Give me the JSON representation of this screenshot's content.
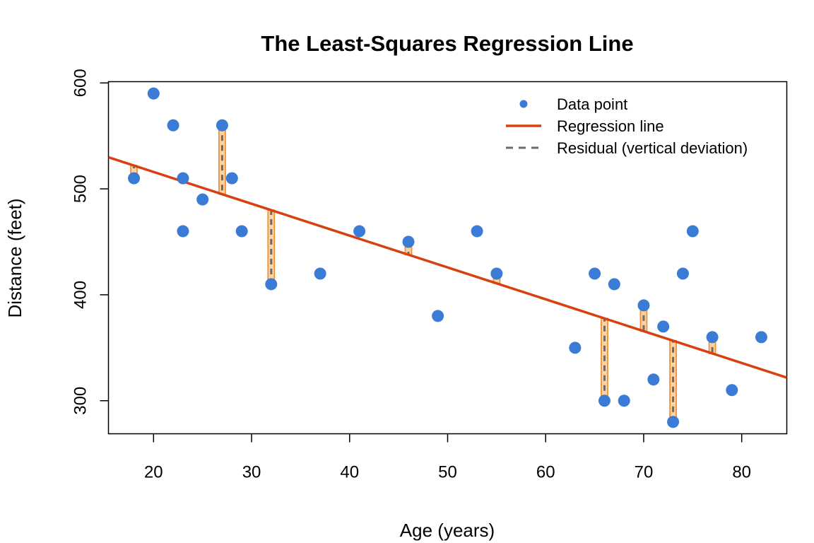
{
  "chart_data": {
    "type": "scatter",
    "title": "The Least-Squares Regression Line",
    "xlabel": "Age (years)",
    "ylabel": "Distance (feet)",
    "xlim": [
      15.4,
      84.6
    ],
    "ylim": [
      268.8,
      601.2
    ],
    "xticks": [
      20,
      30,
      40,
      50,
      60,
      70,
      80
    ],
    "yticks": [
      300,
      400,
      500,
      600
    ],
    "grid": false,
    "legend_position": "top-right",
    "legend": [
      "Data point",
      "Regression line",
      "Residual (vertical deviation)"
    ],
    "colors": {
      "points": "#3a7bd5",
      "regression": "#d9400f",
      "residual_band": "#ffd29e",
      "residual_band_edge": "#f0923a",
      "residual_dash": "#6b6b6b"
    },
    "regression": {
      "intercept": 576.1,
      "slope": -3.006
    },
    "points": [
      {
        "x": 18,
        "y": 510
      },
      {
        "x": 20,
        "y": 590
      },
      {
        "x": 22,
        "y": 560
      },
      {
        "x": 23,
        "y": 510
      },
      {
        "x": 23,
        "y": 460
      },
      {
        "x": 25,
        "y": 490
      },
      {
        "x": 27,
        "y": 560
      },
      {
        "x": 28,
        "y": 510
      },
      {
        "x": 29,
        "y": 460
      },
      {
        "x": 32,
        "y": 410
      },
      {
        "x": 37,
        "y": 420
      },
      {
        "x": 41,
        "y": 460
      },
      {
        "x": 46,
        "y": 450
      },
      {
        "x": 49,
        "y": 380
      },
      {
        "x": 53,
        "y": 460
      },
      {
        "x": 55,
        "y": 420
      },
      {
        "x": 63,
        "y": 350
      },
      {
        "x": 65,
        "y": 420
      },
      {
        "x": 66,
        "y": 300
      },
      {
        "x": 67,
        "y": 410
      },
      {
        "x": 68,
        "y": 300
      },
      {
        "x": 70,
        "y": 390
      },
      {
        "x": 71,
        "y": 320
      },
      {
        "x": 72,
        "y": 370
      },
      {
        "x": 73,
        "y": 280
      },
      {
        "x": 74,
        "y": 420
      },
      {
        "x": 75,
        "y": 460
      },
      {
        "x": 77,
        "y": 360
      },
      {
        "x": 79,
        "y": 310
      },
      {
        "x": 82,
        "y": 360
      }
    ],
    "residual_points": [
      {
        "x": 18,
        "y": 510
      },
      {
        "x": 27,
        "y": 560
      },
      {
        "x": 32,
        "y": 410
      },
      {
        "x": 46,
        "y": 450
      },
      {
        "x": 55,
        "y": 420
      },
      {
        "x": 66,
        "y": 300
      },
      {
        "x": 70,
        "y": 390
      },
      {
        "x": 73,
        "y": 280
      },
      {
        "x": 77,
        "y": 360
      }
    ]
  }
}
